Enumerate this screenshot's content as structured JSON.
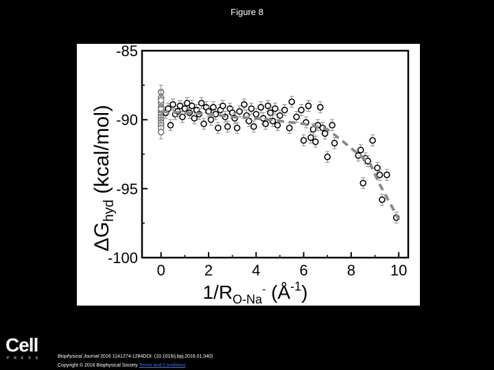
{
  "slide": {
    "title": "Figure 8"
  },
  "footer": {
    "journal": "Biophysical Journal",
    "citation": " 2016 1141274-1284DOI: (10.1016/j.bpj.2016.01.040)",
    "copyright": "Copyright © 2016 Biophysical Society",
    "terms_link": "Terms and Conditions"
  },
  "logo": {
    "word": "Cell",
    "sub": "PRESS"
  },
  "chart_data": {
    "type": "scatter",
    "title": "",
    "xlabel_main": "1/R",
    "xlabel_sub": "O-Na",
    "xlabel_sup_charge": "-",
    "xlabel_unit": " (Å",
    "xlabel_unit_sup": "-1",
    "xlabel_close": ")",
    "ylabel_prefix": "ΔG",
    "ylabel_sub": "hyd",
    "ylabel_unit": " (kcal/mol)",
    "xlim": [
      -0.8,
      10.4
    ],
    "ylim": [
      -100,
      -85
    ],
    "xticks": [
      0,
      2,
      4,
      6,
      8,
      10
    ],
    "yticks": [
      -85,
      -90,
      -95,
      -100
    ],
    "colors": {
      "markers": "#000000",
      "markers_near_zero": "#777777",
      "errorbars": "#888888",
      "trend": "#8a8a8a"
    },
    "trend_line": {
      "style": "dashed",
      "x": [
        0,
        1,
        2,
        3,
        4,
        5,
        6,
        7,
        7.6,
        8.3,
        8.8,
        9.2,
        10
      ],
      "y": [
        -89.4,
        -89.5,
        -89.6,
        -89.8,
        -89.9,
        -90.1,
        -90.3,
        -90.7,
        -91.5,
        -92.5,
        -93.2,
        -94.7,
        -97.2
      ]
    },
    "series": [
      {
        "x": [
          0,
          0,
          0,
          0,
          0,
          0,
          0,
          0,
          0,
          0,
          0,
          0,
          0,
          0,
          0.2,
          0.3,
          0.4,
          0.5,
          0.6,
          0.7,
          0.8,
          0.9,
          1.0,
          1.1,
          1.2,
          1.3,
          1.4,
          1.5,
          1.6,
          1.7,
          1.8,
          1.9,
          2.0,
          2.1,
          2.2,
          2.3,
          2.4,
          2.5,
          2.6,
          2.7,
          2.8,
          2.9,
          3.0,
          3.1,
          3.2,
          3.3,
          3.5,
          3.6,
          3.7,
          3.8,
          3.9,
          4.0,
          4.2,
          4.3,
          4.4,
          4.5,
          4.6,
          4.7,
          4.8,
          4.9,
          5.0,
          5.2,
          5.4,
          5.5,
          5.7,
          5.9,
          6.0,
          6.1,
          6.2,
          6.3,
          6.4,
          6.5,
          6.6,
          6.7,
          6.8,
          6.9,
          7.0,
          7.2,
          7.3,
          8.3,
          8.4,
          8.5,
          8.6,
          8.7,
          8.9,
          9.1,
          9.2,
          9.3,
          9.5,
          9.9
        ],
        "y": [
          -88.0,
          -88.4,
          -88.8,
          -89.1,
          -89.4,
          -89.6,
          -89.8,
          -90.0,
          -90.2,
          -90.4,
          -90.6,
          -89.2,
          -88.6,
          -90.9,
          -89.5,
          -89.2,
          -90.4,
          -88.9,
          -89.6,
          -89.4,
          -89.0,
          -89.8,
          -89.2,
          -88.8,
          -89.5,
          -89.0,
          -89.9,
          -89.3,
          -89.6,
          -88.8,
          -90.3,
          -89.1,
          -89.4,
          -90.0,
          -89.1,
          -89.6,
          -90.6,
          -89.3,
          -89.0,
          -89.8,
          -90.5,
          -89.2,
          -89.5,
          -89.9,
          -90.6,
          -89.4,
          -88.9,
          -89.7,
          -90.1,
          -89.2,
          -90.5,
          -89.6,
          -89.1,
          -89.9,
          -90.3,
          -89.0,
          -89.5,
          -90.1,
          -89.2,
          -90.4,
          -89.7,
          -89.3,
          -90.6,
          -88.7,
          -89.8,
          -89.3,
          -91.5,
          -90.2,
          -89.0,
          -91.3,
          -90.7,
          -91.6,
          -90.4,
          -89.1,
          -90.6,
          -91.0,
          -92.7,
          -90.4,
          -91.7,
          -92.6,
          -92.2,
          -94.6,
          -92.8,
          -93.0,
          -91.5,
          -93.5,
          -94.0,
          -95.8,
          -94.0,
          -97.1
        ],
        "err": [
          0.5,
          0.5,
          0.5,
          0.5,
          0.5,
          0.5,
          0.5,
          0.5,
          0.5,
          0.5,
          0.5,
          0.5,
          0.5,
          0.5,
          0.4,
          0.4,
          0.4,
          0.4,
          0.4,
          0.4,
          0.4,
          0.4,
          0.4,
          0.4,
          0.4,
          0.4,
          0.4,
          0.4,
          0.4,
          0.4,
          0.4,
          0.4,
          0.4,
          0.4,
          0.4,
          0.4,
          0.4,
          0.4,
          0.4,
          0.4,
          0.4,
          0.4,
          0.4,
          0.4,
          0.4,
          0.4,
          0.4,
          0.4,
          0.4,
          0.4,
          0.4,
          0.4,
          0.4,
          0.4,
          0.4,
          0.4,
          0.4,
          0.4,
          0.4,
          0.4,
          0.4,
          0.4,
          0.4,
          0.4,
          0.4,
          0.4,
          0.4,
          0.4,
          0.4,
          0.4,
          0.4,
          0.4,
          0.4,
          0.4,
          0.4,
          0.4,
          0.4,
          0.4,
          0.4,
          0.4,
          0.4,
          0.4,
          0.4,
          0.4,
          0.4,
          0.4,
          0.4,
          0.4,
          0.4,
          0.4
        ]
      }
    ]
  }
}
